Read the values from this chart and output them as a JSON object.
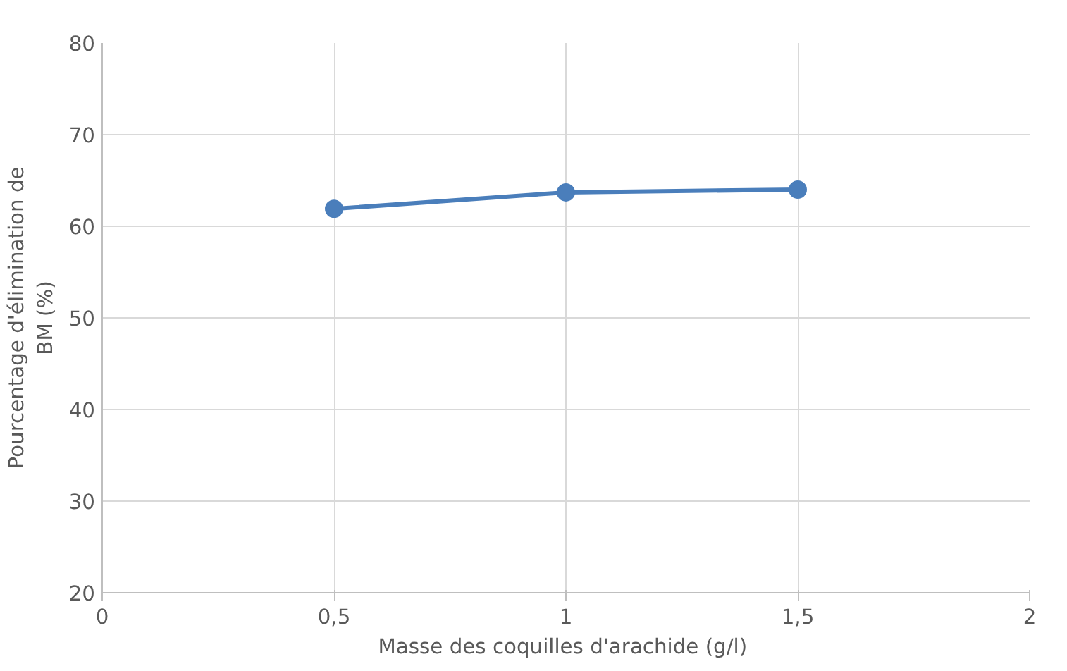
{
  "chart_data": {
    "type": "line",
    "xlabel": "Masse des coquilles d'arachide  (g/l)",
    "ylabel": "Pourcentage d'élimination de\nBM (%)",
    "x": [
      0.5,
      1,
      1.5
    ],
    "series": [
      {
        "color": "#4a7ebb",
        "values": [
          61.9,
          63.7,
          64.0
        ]
      }
    ],
    "xlim": [
      0,
      2
    ],
    "xticks": [
      0,
      {
        "value": 0.5,
        "label": "0,5"
      },
      1,
      {
        "value": 1.5,
        "label": "1,5"
      },
      2
    ],
    "ylim": [
      20,
      80
    ],
    "yticks": [
      20,
      30,
      40,
      50,
      60,
      70,
      80
    ],
    "grid": true,
    "marker": "circle",
    "line_style": "solid"
  }
}
